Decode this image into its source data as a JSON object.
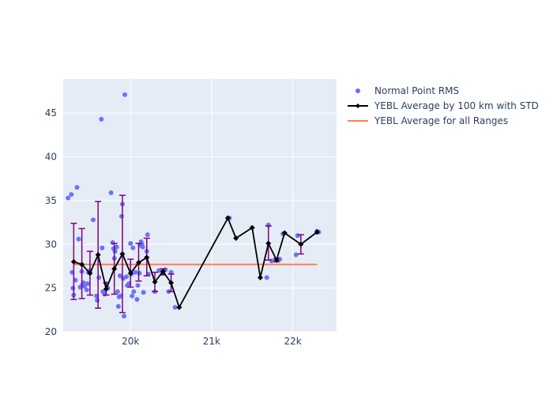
{
  "chart_data": {
    "type": "scatter",
    "title": "",
    "xlabel": "",
    "ylabel": "",
    "xlim": [
      19170,
      22540
    ],
    "ylim": [
      20,
      48.9
    ],
    "x_ticks": [
      20000,
      21000,
      22000
    ],
    "x_tick_labels": [
      "20k",
      "21k",
      "22k"
    ],
    "y_ticks": [
      20,
      25,
      30,
      35,
      40,
      45
    ],
    "y_tick_labels": [
      "20",
      "25",
      "30",
      "35",
      "40",
      "45"
    ],
    "grid": true,
    "legend_placement": "right-top",
    "colors": {
      "plot_bg": "#e5ecf6",
      "grid": "#ffffff",
      "points": "#636efa",
      "average_line": "#000000",
      "error_bars": "#800080",
      "overall_line": "#ff7f50"
    },
    "series": [
      {
        "name": "Normal Point RMS",
        "kind": "markers",
        "points": [
          [
            19230,
            35.3
          ],
          [
            19270,
            35.7
          ],
          [
            19280,
            26.8
          ],
          [
            19290,
            25.0
          ],
          [
            19300,
            24.2
          ],
          [
            19320,
            25.9
          ],
          [
            19340,
            36.5
          ],
          [
            19360,
            30.6
          ],
          [
            19380,
            25.1
          ],
          [
            19400,
            26.9
          ],
          [
            19410,
            25.4
          ],
          [
            19420,
            25.6
          ],
          [
            19430,
            25.2
          ],
          [
            19460,
            24.8
          ],
          [
            19470,
            25.5
          ],
          [
            19480,
            26.8
          ],
          [
            19500,
            27.0
          ],
          [
            19540,
            32.8
          ],
          [
            19580,
            24.1
          ],
          [
            19590,
            23.6
          ],
          [
            19610,
            26.2
          ],
          [
            19640,
            44.3
          ],
          [
            19650,
            29.6
          ],
          [
            19660,
            24.6
          ],
          [
            19680,
            24.3
          ],
          [
            19700,
            25.5
          ],
          [
            19720,
            25.0
          ],
          [
            19760,
            35.9
          ],
          [
            19780,
            30.2
          ],
          [
            19790,
            29.5
          ],
          [
            19800,
            28.4
          ],
          [
            19810,
            29.2
          ],
          [
            19830,
            29.7
          ],
          [
            19840,
            24.6
          ],
          [
            19850,
            22.9
          ],
          [
            19860,
            24.0
          ],
          [
            19870,
            26.4
          ],
          [
            19880,
            24.1
          ],
          [
            19890,
            33.2
          ],
          [
            19900,
            34.6
          ],
          [
            19910,
            26.1
          ],
          [
            19920,
            21.8
          ],
          [
            19930,
            47.1
          ],
          [
            19950,
            26.3
          ],
          [
            19960,
            25.3
          ],
          [
            19980,
            25.5
          ],
          [
            20000,
            30.1
          ],
          [
            20010,
            26.6
          ],
          [
            20020,
            24.1
          ],
          [
            20030,
            29.6
          ],
          [
            20040,
            24.6
          ],
          [
            20060,
            26.8
          ],
          [
            20080,
            23.7
          ],
          [
            20090,
            25.3
          ],
          [
            20110,
            26.7
          ],
          [
            20120,
            29.9
          ],
          [
            20130,
            30.3
          ],
          [
            20140,
            30.0
          ],
          [
            20150,
            29.7
          ],
          [
            20160,
            24.5
          ],
          [
            20200,
            29.2
          ],
          [
            20210,
            31.1
          ],
          [
            20220,
            26.6
          ],
          [
            20300,
            24.6
          ],
          [
            20350,
            27.0
          ],
          [
            20400,
            26.7
          ],
          [
            20430,
            27.1
          ],
          [
            20470,
            24.6
          ],
          [
            20500,
            26.8
          ],
          [
            20550,
            22.8
          ],
          [
            21220,
            33.0
          ],
          [
            21680,
            26.2
          ],
          [
            21700,
            32.2
          ],
          [
            21740,
            28.1
          ],
          [
            21840,
            28.3
          ],
          [
            21880,
            31.2
          ],
          [
            22040,
            28.8
          ],
          [
            22060,
            31.0
          ],
          [
            22300,
            31.5
          ],
          [
            22320,
            31.4
          ]
        ]
      },
      {
        "name": "YEBL Average by 100 km with STD",
        "kind": "lines+markers",
        "points": [
          [
            19300,
            28.0
          ],
          [
            19400,
            27.7
          ],
          [
            19500,
            26.7
          ],
          [
            19600,
            28.8
          ],
          [
            19700,
            24.9
          ],
          [
            19800,
            27.2
          ],
          [
            19900,
            28.9
          ],
          [
            20000,
            26.7
          ],
          [
            20100,
            27.9
          ],
          [
            20200,
            28.5
          ],
          [
            20300,
            25.7
          ],
          [
            20400,
            26.9
          ],
          [
            20500,
            25.6
          ],
          [
            20600,
            22.8
          ],
          [
            21200,
            33.0
          ],
          [
            21300,
            30.7
          ],
          [
            21500,
            31.9
          ],
          [
            21600,
            26.2
          ],
          [
            21700,
            30.1
          ],
          [
            21800,
            28.2
          ],
          [
            21900,
            31.3
          ],
          [
            22100,
            30.0
          ],
          [
            22300,
            31.4
          ]
        ],
        "error_bars": [
          [
            19300,
            23.7,
            32.4
          ],
          [
            19400,
            23.8,
            31.8
          ],
          [
            19500,
            24.2,
            29.2
          ],
          [
            19600,
            22.7,
            34.9
          ],
          [
            19700,
            24.2,
            25.6
          ],
          [
            19800,
            24.3,
            30.1
          ],
          [
            19900,
            22.2,
            35.6
          ],
          [
            20000,
            25.1,
            28.3
          ],
          [
            20100,
            25.8,
            30.1
          ],
          [
            20200,
            26.4,
            30.7
          ],
          [
            20300,
            24.6,
            26.8
          ],
          [
            20400,
            26.5,
            27.2
          ],
          [
            20500,
            24.6,
            26.6
          ],
          [
            21700,
            28.2,
            32.1
          ],
          [
            21800,
            28.0,
            28.4
          ],
          [
            22100,
            28.9,
            31.1
          ]
        ]
      },
      {
        "name": "YEBL Average for all Ranges",
        "kind": "line",
        "points": [
          [
            19300,
            27.7
          ],
          [
            22300,
            27.7
          ]
        ]
      }
    ]
  }
}
